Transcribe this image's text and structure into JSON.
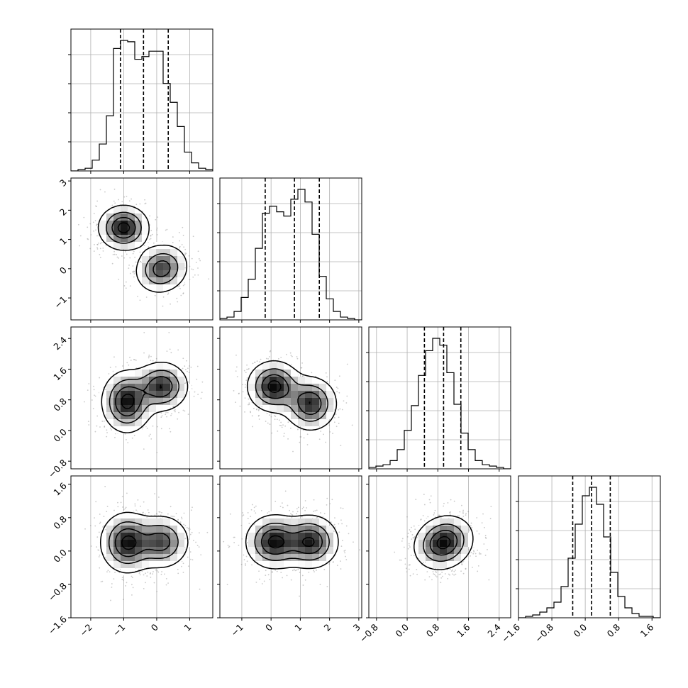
{
  "chart_data": {
    "type": "corner",
    "variables": 4,
    "grid": true,
    "quantile_lines": "dashed",
    "axes": [
      {
        "index": 0,
        "range": [
          -2.6,
          1.7
        ],
        "ticks": [
          -2,
          -1,
          0,
          1
        ],
        "tick_labels": [
          "−2",
          "−1",
          "0",
          "1"
        ]
      },
      {
        "index": 1,
        "range": [
          -1.75,
          3.1
        ],
        "ticks": [
          -1,
          0,
          1,
          2,
          3
        ],
        "tick_labels": [
          "−1",
          "0",
          "1",
          "2",
          "3"
        ]
      },
      {
        "index": 2,
        "range": [
          -1.0,
          2.7
        ],
        "ticks": [
          -0.8,
          0.0,
          0.8,
          1.6,
          2.4
        ],
        "tick_labels": [
          "−0.8",
          "0.0",
          "0.8",
          "1.6",
          "2.4"
        ]
      },
      {
        "index": 3,
        "range": [
          -1.6,
          1.8
        ],
        "ticks": [
          -1.6,
          -0.8,
          0.0,
          0.8,
          1.6
        ],
        "tick_labels": [
          "−1.6",
          "−0.8",
          "0.0",
          "0.8",
          "1.6"
        ]
      }
    ],
    "histograms": [
      {
        "index": 0,
        "bin_start": -2.6,
        "bin_width": 0.215,
        "counts": [
          0,
          1,
          2,
          8,
          20,
          41,
          91,
          97,
          96,
          83,
          85,
          89,
          89,
          65,
          51,
          33,
          14,
          6,
          2,
          1
        ],
        "quantiles": [
          -1.1,
          -0.4,
          0.35
        ]
      },
      {
        "index": 1,
        "bin_start": -1.75,
        "bin_width": 0.2425,
        "counts": [
          1,
          2,
          6,
          16,
          29,
          51,
          76,
          81,
          77,
          74,
          86,
          93,
          84,
          61,
          31,
          15,
          6,
          2,
          1,
          0
        ],
        "quantiles": [
          -0.2,
          0.8,
          1.65
        ]
      },
      {
        "index": 2,
        "bin_start": -1.0,
        "bin_width": 0.185,
        "counts": [
          1,
          2,
          3,
          6,
          14,
          28,
          46,
          68,
          86,
          95,
          90,
          70,
          47,
          26,
          14,
          6,
          3,
          2,
          1,
          0
        ],
        "quantiles": [
          0.45,
          0.95,
          1.4
        ]
      },
      {
        "index": 3,
        "bin_start": -1.6,
        "bin_width": 0.17,
        "counts": [
          0,
          1,
          2,
          4,
          7,
          11,
          22,
          42,
          66,
          86,
          92,
          80,
          57,
          32,
          15,
          7,
          3,
          1,
          1,
          0
        ],
        "quantiles": [
          -0.3,
          0.15,
          0.6
        ]
      }
    ],
    "pair_densities": [
      {
        "x": 0,
        "y": 1,
        "modes": [
          {
            "cx": -1.0,
            "cy": 1.4,
            "sx": 0.38,
            "sy": 0.38,
            "w": 1.0,
            "rho": 0.0
          },
          {
            "cx": 0.15,
            "cy": 0.0,
            "sx": 0.4,
            "sy": 0.42,
            "w": 0.8,
            "rho": 0.1
          }
        ]
      },
      {
        "x": 0,
        "y": 2,
        "modes": [
          {
            "cx": -0.9,
            "cy": 0.75,
            "sx": 0.38,
            "sy": 0.4,
            "w": 1.0,
            "rho": 0.0
          },
          {
            "cx": 0.15,
            "cy": 1.15,
            "sx": 0.4,
            "sy": 0.32,
            "w": 0.9,
            "rho": 0.0
          }
        ]
      },
      {
        "x": 0,
        "y": 3,
        "modes": [
          {
            "cx": -0.9,
            "cy": 0.2,
            "sx": 0.4,
            "sy": 0.36,
            "w": 1.0,
            "rho": 0.0
          },
          {
            "cx": 0.15,
            "cy": 0.22,
            "sx": 0.42,
            "sy": 0.32,
            "w": 0.8,
            "rho": 0.0
          }
        ]
      },
      {
        "x": 1,
        "y": 2,
        "modes": [
          {
            "cx": 0.1,
            "cy": 1.15,
            "sx": 0.45,
            "sy": 0.33,
            "w": 1.0,
            "rho": 0.0
          },
          {
            "cx": 1.35,
            "cy": 0.7,
            "sx": 0.45,
            "sy": 0.35,
            "w": 0.9,
            "rho": 0.0
          }
        ]
      },
      {
        "x": 1,
        "y": 3,
        "modes": [
          {
            "cx": 0.1,
            "cy": 0.22,
            "sx": 0.48,
            "sy": 0.32,
            "w": 1.0,
            "rho": 0.0
          },
          {
            "cx": 1.35,
            "cy": 0.22,
            "sx": 0.48,
            "sy": 0.32,
            "w": 0.95,
            "rho": 0.0
          }
        ]
      },
      {
        "x": 2,
        "y": 3,
        "modes": [
          {
            "cx": 0.95,
            "cy": 0.2,
            "sx": 0.38,
            "sy": 0.32,
            "w": 1.0,
            "rho": 0.15
          }
        ]
      }
    ]
  }
}
